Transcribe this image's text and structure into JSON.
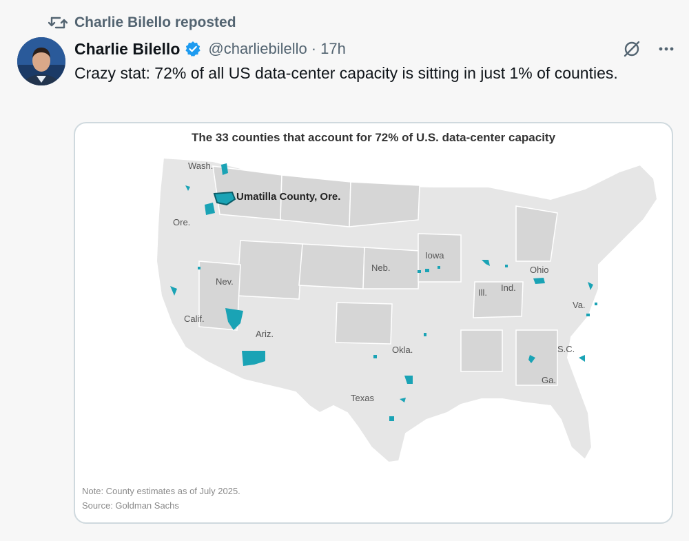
{
  "repost": {
    "text": "Charlie Bilello reposted",
    "icon": "repost-icon"
  },
  "author": {
    "name": "Charlie Bilello",
    "handle": "@charliebilello",
    "separator": "·",
    "time": "17h",
    "verified": true
  },
  "tweet": {
    "text": "Crazy stat: 72% of all US data-center capacity is sitting in just 1% of counties."
  },
  "actions": {
    "grok_icon": "grok-icon",
    "more_icon": "more-horizontal-icon"
  },
  "colors": {
    "accent": "#1d9bf0",
    "county": "#1aa3b5",
    "muted": "#536471"
  },
  "map": {
    "title": "The 33 counties that account for 72% of U.S. data-center capacity",
    "highlight_label": "Umatilla County, Ore.",
    "state_labels": {
      "wash": "Wash.",
      "ore": "Ore.",
      "nev": "Nev.",
      "calif": "Calif.",
      "ariz": "Ariz.",
      "neb": "Neb.",
      "iowa": "Iowa",
      "ill": "Ill.",
      "ind": "Ind.",
      "ohio": "Ohio",
      "va": "Va.",
      "okla": "Okla.",
      "texas": "Texas",
      "sc": "S.C.",
      "ga": "Ga."
    },
    "note": "Note: County estimates as of July 2025.",
    "source": "Source: Goldman Sachs"
  }
}
